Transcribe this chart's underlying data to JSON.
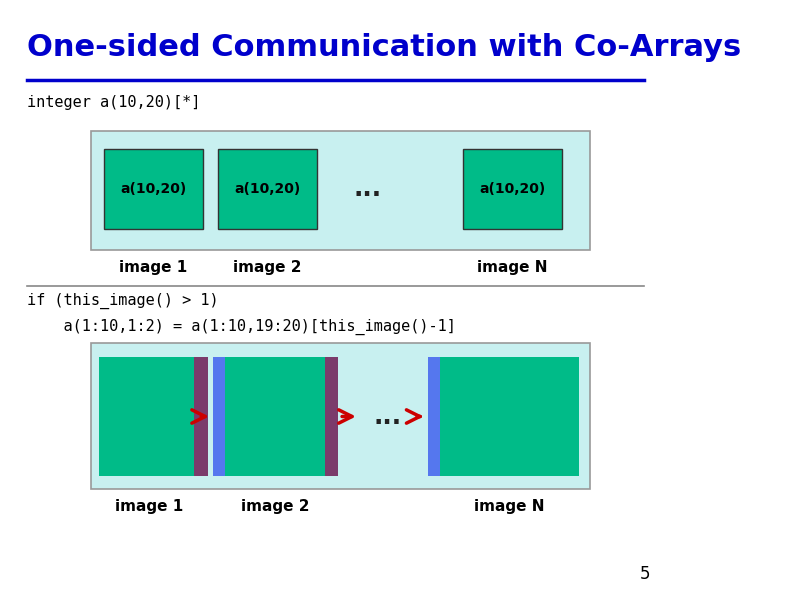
{
  "title": "One-sided Communication with Co-Arrays",
  "title_color": "#0000CC",
  "bg_color": "#FFFFFF",
  "line_color": "#0000CC",
  "sep_line_color": "#888888",
  "code1": "integer a(10,20)[*]",
  "code2": "if (this_image() > 1)",
  "code3": "    a(1:10,1:2) = a(1:10,19:20)[this_image()-1]",
  "box_bg": "#C8F0F0",
  "green_color": "#00BB88",
  "dark_purple": "#7B3B6B",
  "blue_rect": "#5577EE",
  "arrow_color": "#CC0000",
  "dots_color": "#222222",
  "page_num": "5"
}
